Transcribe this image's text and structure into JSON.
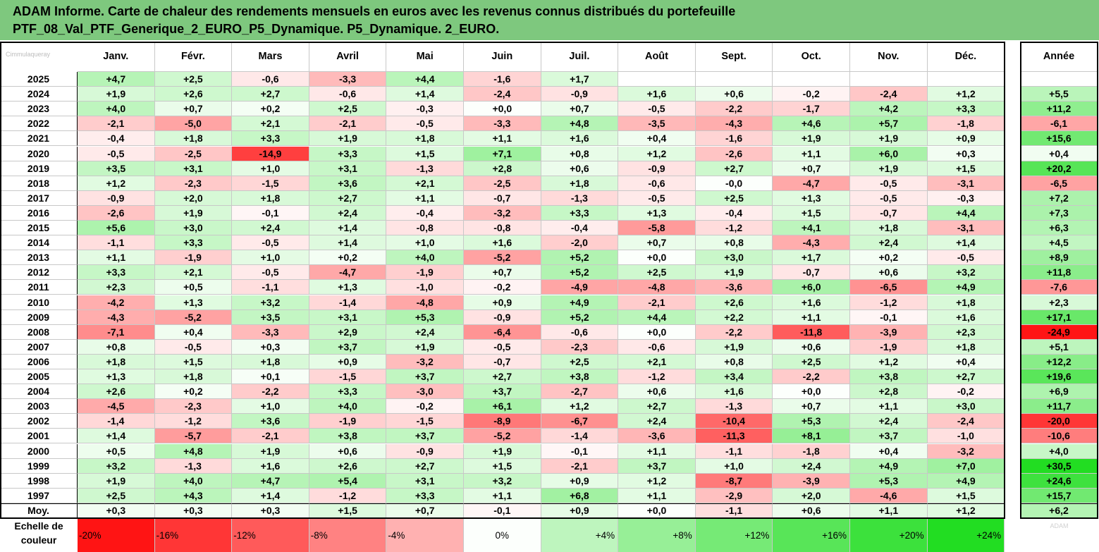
{
  "title": {
    "line1": "ADAM Informe. Carte de chaleur des rendements mensuels en euros avec les revenus connus distribués du portefeuille",
    "line2": "PTF_08_Val_PTF_Generique_2_EURO_P5_Dynamique. P5_Dynamique. 2_EURO."
  },
  "corner_label": "Cimmulaqueray",
  "watermark": "ADAM",
  "colors": {
    "title_bg": "#7ec87e",
    "neg_max": "#ff0000",
    "pos_max": "#22dd22",
    "neutral": "#ffffff"
  },
  "chart_data": {
    "type": "heatmap",
    "columns": [
      "Janv.",
      "Févr.",
      "Mars",
      "Avril",
      "Mai",
      "Juin",
      "Juil.",
      "Août",
      "Sept.",
      "Oct.",
      "Nov.",
      "Déc."
    ],
    "annual_label": "Année",
    "rows": [
      {
        "year": "2025",
        "months": [
          "+4,7",
          "+2,5",
          "-0,6",
          "-3,3",
          "+4,4",
          "-1,6",
          "+1,7",
          "",
          "",
          "",
          "",
          ""
        ],
        "annual": ""
      },
      {
        "year": "2024",
        "months": [
          "+1,9",
          "+2,6",
          "+2,7",
          "-0,6",
          "+1,4",
          "-2,4",
          "-0,9",
          "+1,6",
          "+0,6",
          "-0,2",
          "-2,4",
          "+1,2"
        ],
        "annual": "+5,5"
      },
      {
        "year": "2023",
        "months": [
          "+4,0",
          "+0,7",
          "+0,2",
          "+2,5",
          "-0,3",
          "+0,0",
          "+0,7",
          "-0,5",
          "-2,2",
          "-1,7",
          "+4,2",
          "+3,3"
        ],
        "annual": "+11,2"
      },
      {
        "year": "2022",
        "months": [
          "-2,1",
          "-5,0",
          "+2,1",
          "-2,1",
          "-0,5",
          "-3,3",
          "+4,8",
          "-3,5",
          "-4,3",
          "+4,6",
          "+5,7",
          "-1,8"
        ],
        "annual": "-6,1"
      },
      {
        "year": "2021",
        "months": [
          "-0,4",
          "+1,8",
          "+3,3",
          "+1,9",
          "+1,8",
          "+1,1",
          "+1,6",
          "+0,4",
          "-1,6",
          "+1,9",
          "+1,9",
          "+0,9"
        ],
        "annual": "+15,6"
      },
      {
        "year": "2020",
        "months": [
          "-0,5",
          "-2,5",
          "-14,9",
          "+3,3",
          "+1,5",
          "+7,1",
          "+0,8",
          "+1,2",
          "-2,6",
          "+1,1",
          "+6,0",
          "+0,3"
        ],
        "annual": "+0,4"
      },
      {
        "year": "2019",
        "months": [
          "+3,5",
          "+3,1",
          "+1,0",
          "+3,1",
          "-1,3",
          "+2,8",
          "+0,6",
          "-0,9",
          "+2,7",
          "+0,7",
          "+1,9",
          "+1,5"
        ],
        "annual": "+20,2"
      },
      {
        "year": "2018",
        "months": [
          "+1,2",
          "-2,3",
          "-1,5",
          "+3,6",
          "+2,1",
          "-2,5",
          "+1,8",
          "-0,6",
          "-0,0",
          "-4,7",
          "-0,5",
          "-3,1"
        ],
        "annual": "-6,5"
      },
      {
        "year": "2017",
        "months": [
          "-0,9",
          "+2,0",
          "+1,8",
          "+2,7",
          "+1,1",
          "-0,7",
          "-1,3",
          "-0,5",
          "+2,5",
          "+1,3",
          "-0,5",
          "-0,3"
        ],
        "annual": "+7,2"
      },
      {
        "year": "2016",
        "months": [
          "-2,6",
          "+1,9",
          "-0,1",
          "+2,4",
          "-0,4",
          "-3,2",
          "+3,3",
          "+1,3",
          "-0,4",
          "+1,5",
          "-0,7",
          "+4,4"
        ],
        "annual": "+7,3"
      },
      {
        "year": "2015",
        "months": [
          "+5,6",
          "+3,0",
          "+2,4",
          "+1,4",
          "-0,8",
          "-0,8",
          "-0,4",
          "-5,8",
          "-1,2",
          "+4,1",
          "+1,8",
          "-3,1"
        ],
        "annual": "+6,3"
      },
      {
        "year": "2014",
        "months": [
          "-1,1",
          "+3,3",
          "-0,5",
          "+1,4",
          "+1,0",
          "+1,6",
          "-2,0",
          "+0,7",
          "+0,8",
          "-4,3",
          "+2,4",
          "+1,4"
        ],
        "annual": "+4,5"
      },
      {
        "year": "2013",
        "months": [
          "+1,1",
          "-1,9",
          "+1,0",
          "+0,2",
          "+4,0",
          "-5,2",
          "+5,2",
          "+0,0",
          "+3,0",
          "+1,7",
          "+0,2",
          "-0,5"
        ],
        "annual": "+8,9"
      },
      {
        "year": "2012",
        "months": [
          "+3,3",
          "+2,1",
          "-0,5",
          "-4,7",
          "-1,9",
          "+0,7",
          "+5,2",
          "+2,5",
          "+1,9",
          "-0,7",
          "+0,6",
          "+3,2"
        ],
        "annual": "+11,8"
      },
      {
        "year": "2011",
        "months": [
          "+2,3",
          "+0,5",
          "-1,1",
          "+1,3",
          "-1,0",
          "-0,2",
          "-4,9",
          "-4,8",
          "-3,6",
          "+6,0",
          "-6,5",
          "+4,9"
        ],
        "annual": "-7,6"
      },
      {
        "year": "2010",
        "months": [
          "-4,2",
          "+1,3",
          "+3,2",
          "-1,4",
          "-4,8",
          "+0,9",
          "+4,9",
          "-2,1",
          "+2,6",
          "+1,6",
          "-1,2",
          "+1,8"
        ],
        "annual": "+2,3"
      },
      {
        "year": "2009",
        "months": [
          "-4,3",
          "-5,2",
          "+3,5",
          "+3,1",
          "+5,3",
          "-0,9",
          "+5,2",
          "+4,4",
          "+2,2",
          "+1,1",
          "-0,1",
          "+1,6"
        ],
        "annual": "+17,1"
      },
      {
        "year": "2008",
        "months": [
          "-7,1",
          "+0,4",
          "-3,3",
          "+2,9",
          "+2,4",
          "-6,4",
          "-0,6",
          "+0,0",
          "-2,2",
          "-11,8",
          "-3,9",
          "+2,3"
        ],
        "annual": "-24,9"
      },
      {
        "year": "2007",
        "months": [
          "+0,8",
          "-0,5",
          "+0,3",
          "+3,7",
          "+1,9",
          "-0,5",
          "-2,3",
          "-0,6",
          "+1,9",
          "+0,6",
          "-1,9",
          "+1,8"
        ],
        "annual": "+5,1"
      },
      {
        "year": "2006",
        "months": [
          "+1,8",
          "+1,5",
          "+1,8",
          "+0,9",
          "-3,2",
          "-0,7",
          "+2,5",
          "+2,1",
          "+0,8",
          "+2,5",
          "+1,2",
          "+0,4"
        ],
        "annual": "+12,2"
      },
      {
        "year": "2005",
        "months": [
          "+1,3",
          "+1,8",
          "+0,1",
          "-1,5",
          "+3,7",
          "+2,7",
          "+3,8",
          "-1,2",
          "+3,4",
          "-2,2",
          "+3,8",
          "+2,7"
        ],
        "annual": "+19,6"
      },
      {
        "year": "2004",
        "months": [
          "+2,6",
          "+0,2",
          "-2,2",
          "+3,3",
          "-3,0",
          "+3,7",
          "-2,7",
          "+0,6",
          "+1,6",
          "+0,0",
          "+2,8",
          "-0,2"
        ],
        "annual": "+6,9"
      },
      {
        "year": "2003",
        "months": [
          "-4,5",
          "-2,3",
          "+1,0",
          "+4,0",
          "-0,2",
          "+6,1",
          "+1,2",
          "+2,7",
          "-1,3",
          "+0,7",
          "+1,1",
          "+3,0"
        ],
        "annual": "+11,7"
      },
      {
        "year": "2002",
        "months": [
          "-1,4",
          "-1,2",
          "+3,6",
          "-1,9",
          "-1,5",
          "-8,9",
          "-6,7",
          "+2,4",
          "-10,4",
          "+5,3",
          "+2,4",
          "-2,4"
        ],
        "annual": "-20,0"
      },
      {
        "year": "2001",
        "months": [
          "+1,4",
          "-5,7",
          "-2,1",
          "+3,8",
          "+3,7",
          "-5,2",
          "-1,4",
          "-3,6",
          "-11,3",
          "+8,1",
          "+3,7",
          "-1,0"
        ],
        "annual": "-10,6"
      },
      {
        "year": "2000",
        "months": [
          "+0,5",
          "+4,8",
          "+1,9",
          "+0,6",
          "-0,9",
          "+1,9",
          "-0,1",
          "+1,1",
          "-1,1",
          "-1,8",
          "+0,4",
          "-3,2"
        ],
        "annual": "+4,0"
      },
      {
        "year": "1999",
        "months": [
          "+3,2",
          "-1,3",
          "+1,6",
          "+2,6",
          "+2,7",
          "+1,5",
          "-2,1",
          "+3,7",
          "+1,0",
          "+2,4",
          "+4,9",
          "+7,0"
        ],
        "annual": "+30,5"
      },
      {
        "year": "1998",
        "months": [
          "+1,9",
          "+4,0",
          "+4,7",
          "+5,4",
          "+3,1",
          "+3,2",
          "+0,9",
          "+1,2",
          "-8,7",
          "-3,9",
          "+5,3",
          "+4,9"
        ],
        "annual": "+24,6"
      },
      {
        "year": "1997",
        "months": [
          "+2,5",
          "+4,3",
          "+1,4",
          "-1,2",
          "+3,3",
          "+1,1",
          "+6,8",
          "+1,1",
          "-2,9",
          "+2,0",
          "-4,6",
          "+1,5"
        ],
        "annual": "+15,7"
      }
    ],
    "average": {
      "label": "Moy.",
      "months": [
        "+0,3",
        "+0,3",
        "+0,3",
        "+1,5",
        "+0,7",
        "-0,1",
        "+0,9",
        "+0,0",
        "-1,1",
        "+0,6",
        "+1,1",
        "+1,2"
      ],
      "annual": "+6,2"
    },
    "scale_label": "Echelle de couleur",
    "scale": [
      "-20%",
      "-16%",
      "-12%",
      "-8%",
      "-4%",
      "0%",
      "+4%",
      "+8%",
      "+12%",
      "+16%",
      "+20%",
      "+24%"
    ],
    "color_range": {
      "min": -20,
      "max": 24
    },
    "annual_color_range": {
      "min": -25,
      "max": 30
    }
  }
}
